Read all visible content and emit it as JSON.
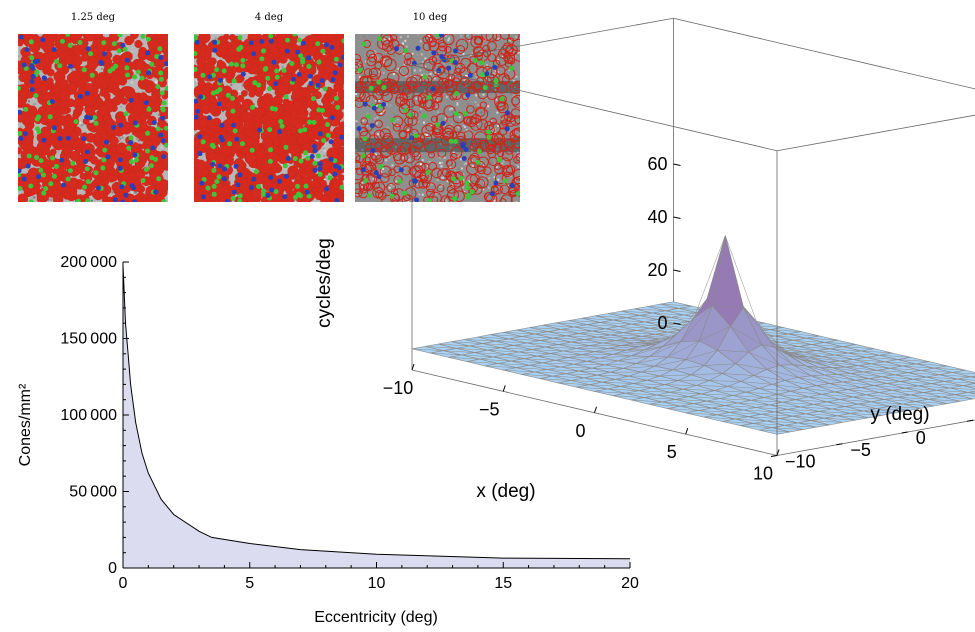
{
  "mosaics": [
    {
      "label": "1.25 deg"
    },
    {
      "label": "4 deg"
    },
    {
      "label": "10 deg"
    }
  ],
  "chart_data": [
    {
      "type": "area",
      "xlabel": "Eccentricity (deg)",
      "ylabel": "Cones/mm²",
      "xlim": [
        0,
        20
      ],
      "ylim": [
        0,
        200000
      ],
      "xticks": [
        "0",
        "5",
        "10",
        "15",
        "20"
      ],
      "yticks": [
        "0",
        "50 000",
        "100 000",
        "150 000",
        "200 000"
      ],
      "x": [
        0,
        0.1,
        0.2,
        0.3,
        0.5,
        0.75,
        1.0,
        1.5,
        2.0,
        3.0,
        3.5,
        5,
        7,
        10,
        15,
        20
      ],
      "y": [
        198000,
        160000,
        140000,
        120000,
        95000,
        75000,
        62000,
        45000,
        35000,
        24000,
        20000,
        16000,
        12000,
        9000,
        6500,
        6000
      ],
      "fill": "#dcdcf0",
      "line": "#000000"
    },
    {
      "type": "surface3d",
      "zlabel": "cycles/deg",
      "xlabel": "x (deg)",
      "ylabel": "y (deg)",
      "zticks": [
        "0",
        "20",
        "40",
        "60"
      ],
      "xticks": [
        "−10",
        "−5",
        "0",
        "5",
        "10"
      ],
      "yticks": [
        "−10",
        "−5",
        "0",
        "5",
        "10"
      ],
      "xlim": [
        -10,
        10
      ],
      "ylim": [
        -10,
        10
      ],
      "zlim": [
        0,
        60
      ],
      "peak": {
        "x": 0,
        "y": 0,
        "z": 58
      },
      "baseline_z": 8,
      "surface_color": "#a9d3f5",
      "peak_color": "#8e5a9c",
      "mesh_color": "#8a8a8a"
    }
  ]
}
